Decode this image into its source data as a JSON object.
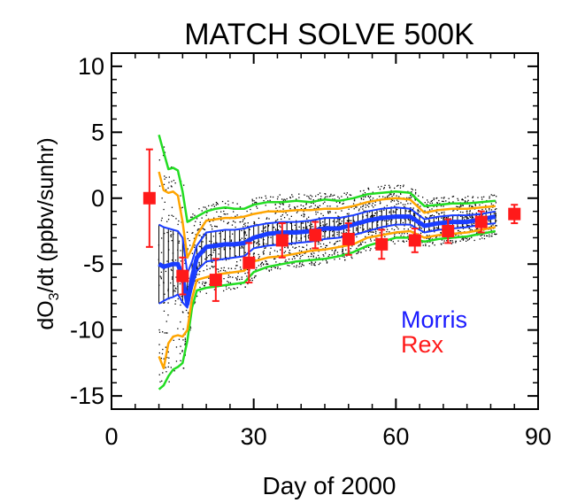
{
  "chart_data": {
    "type": "line",
    "title": "MATCH SOLVE 500K",
    "xlabel": "Day of 2000",
    "ylabel_main": "dO",
    "ylabel_sub": "3",
    "ylabel_rest": "/dt (ppbv/sunhr)",
    "xlim": [
      0,
      90
    ],
    "ylim": [
      -16,
      11
    ],
    "x_ticks": [
      0,
      30,
      60,
      90
    ],
    "y_ticks": [
      10,
      5,
      0,
      -5,
      -10,
      -15
    ],
    "grid": false,
    "legend_position": "right-lower",
    "legend": [
      {
        "name": "Morris",
        "color": "#1a1aff"
      },
      {
        "name": "Rex",
        "color": "#ff1a1a"
      }
    ],
    "colors": {
      "mean": "#1a3cff",
      "inner_band": "#ffa500",
      "outer_band": "#22dd22",
      "scatter": "#000000",
      "rex": "#ff1a1a"
    },
    "morris": {
      "x": [
        10,
        11,
        12,
        13,
        14,
        15,
        16,
        17,
        18,
        20,
        22,
        24,
        26,
        28,
        30,
        33,
        36,
        39,
        42,
        45,
        48,
        51,
        54,
        57,
        60,
        63,
        66,
        69,
        72,
        75,
        78,
        81
      ],
      "mean": [
        -5.0,
        -5.2,
        -5.1,
        -5.0,
        -5.0,
        -6.0,
        -8.0,
        -6.0,
        -4.5,
        -3.7,
        -3.6,
        -3.5,
        -3.5,
        -3.4,
        -3.0,
        -2.7,
        -2.6,
        -2.6,
        -2.5,
        -2.3,
        -2.3,
        -2.0,
        -1.7,
        -1.5,
        -1.4,
        -1.4,
        -2.1,
        -1.9,
        -1.8,
        -1.8,
        -1.6,
        -1.4
      ],
      "sd_lo": [
        -8.0,
        -7.8,
        -7.6,
        -7.5,
        -7.3,
        -7.9,
        -8.3,
        -6.8,
        -5.5,
        -4.8,
        -4.7,
        -4.6,
        -4.5,
        -4.4,
        -3.8,
        -3.6,
        -3.5,
        -3.4,
        -3.3,
        -3.1,
        -3.0,
        -2.8,
        -2.5,
        -2.2,
        -2.0,
        -2.0,
        -2.6,
        -2.4,
        -2.3,
        -2.2,
        -2.0,
        -1.9
      ],
      "sd_hi": [
        -2.0,
        -2.2,
        -2.3,
        -2.4,
        -2.5,
        -3.0,
        -5.7,
        -4.8,
        -3.6,
        -2.6,
        -2.5,
        -2.4,
        -2.4,
        -2.3,
        -2.1,
        -1.9,
        -1.8,
        -1.8,
        -1.7,
        -1.5,
        -1.5,
        -1.3,
        -1.0,
        -0.8,
        -0.7,
        -0.8,
        -1.6,
        -1.4,
        -1.3,
        -1.3,
        -1.2,
        -1.0
      ],
      "q_lo": [
        -12.0,
        -12.9,
        -11.0,
        -10.5,
        -10.4,
        -10.5,
        -10.0,
        -7.6,
        -6.2,
        -6.0,
        -5.8,
        -5.7,
        -5.6,
        -5.5,
        -4.8,
        -4.5,
        -4.4,
        -4.2,
        -4.0,
        -3.9,
        -3.7,
        -3.5,
        -3.0,
        -2.8,
        -2.6,
        -2.5,
        -3.0,
        -2.8,
        -2.7,
        -2.6,
        -2.4,
        -2.2
      ],
      "q_hi": [
        2.0,
        0.6,
        0.4,
        0.5,
        0.2,
        -1.8,
        -4.5,
        -3.8,
        -2.8,
        -1.7,
        -1.6,
        -1.5,
        -1.5,
        -1.4,
        -1.2,
        -1.0,
        -1.0,
        -0.9,
        -0.9,
        -0.8,
        -0.8,
        -0.6,
        -0.3,
        -0.1,
        0.0,
        -0.1,
        -1.1,
        -0.9,
        -0.8,
        -0.8,
        -0.7,
        -0.6
      ],
      "o_lo": [
        -14.5,
        -14.2,
        -13.5,
        -13.0,
        -12.8,
        -12.5,
        -10.8,
        -8.3,
        -7.0,
        -6.8,
        -6.7,
        -6.6,
        -6.5,
        -6.4,
        -5.6,
        -5.2,
        -5.0,
        -4.8,
        -4.7,
        -4.6,
        -4.4,
        -4.1,
        -3.6,
        -3.3,
        -3.0,
        -3.0,
        -3.3,
        -3.1,
        -3.0,
        -2.9,
        -2.7,
        -2.5
      ],
      "o_hi": [
        4.8,
        3.5,
        2.2,
        2.3,
        2.1,
        0.5,
        -1.8,
        -1.6,
        -1.4,
        -1.0,
        -0.8,
        -0.7,
        -0.8,
        -0.8,
        -0.5,
        -0.3,
        -0.3,
        -0.2,
        -0.3,
        -0.1,
        -0.2,
        0.0,
        0.3,
        0.4,
        0.5,
        0.4,
        -0.6,
        -0.5,
        -0.4,
        -0.4,
        -0.3,
        -0.2
      ]
    },
    "rex": {
      "x": [
        8,
        15,
        22,
        29,
        36,
        43,
        50,
        57,
        64,
        71,
        78,
        85
      ],
      "y": [
        0.0,
        -5.9,
        -6.2,
        -4.9,
        -3.2,
        -2.8,
        -3.1,
        -3.5,
        -3.2,
        -2.5,
        -1.8,
        -1.2
      ],
      "err": [
        3.7,
        1.4,
        1.6,
        1.5,
        1.3,
        1.0,
        1.2,
        1.1,
        0.9,
        0.9,
        0.8,
        0.7
      ]
    }
  }
}
